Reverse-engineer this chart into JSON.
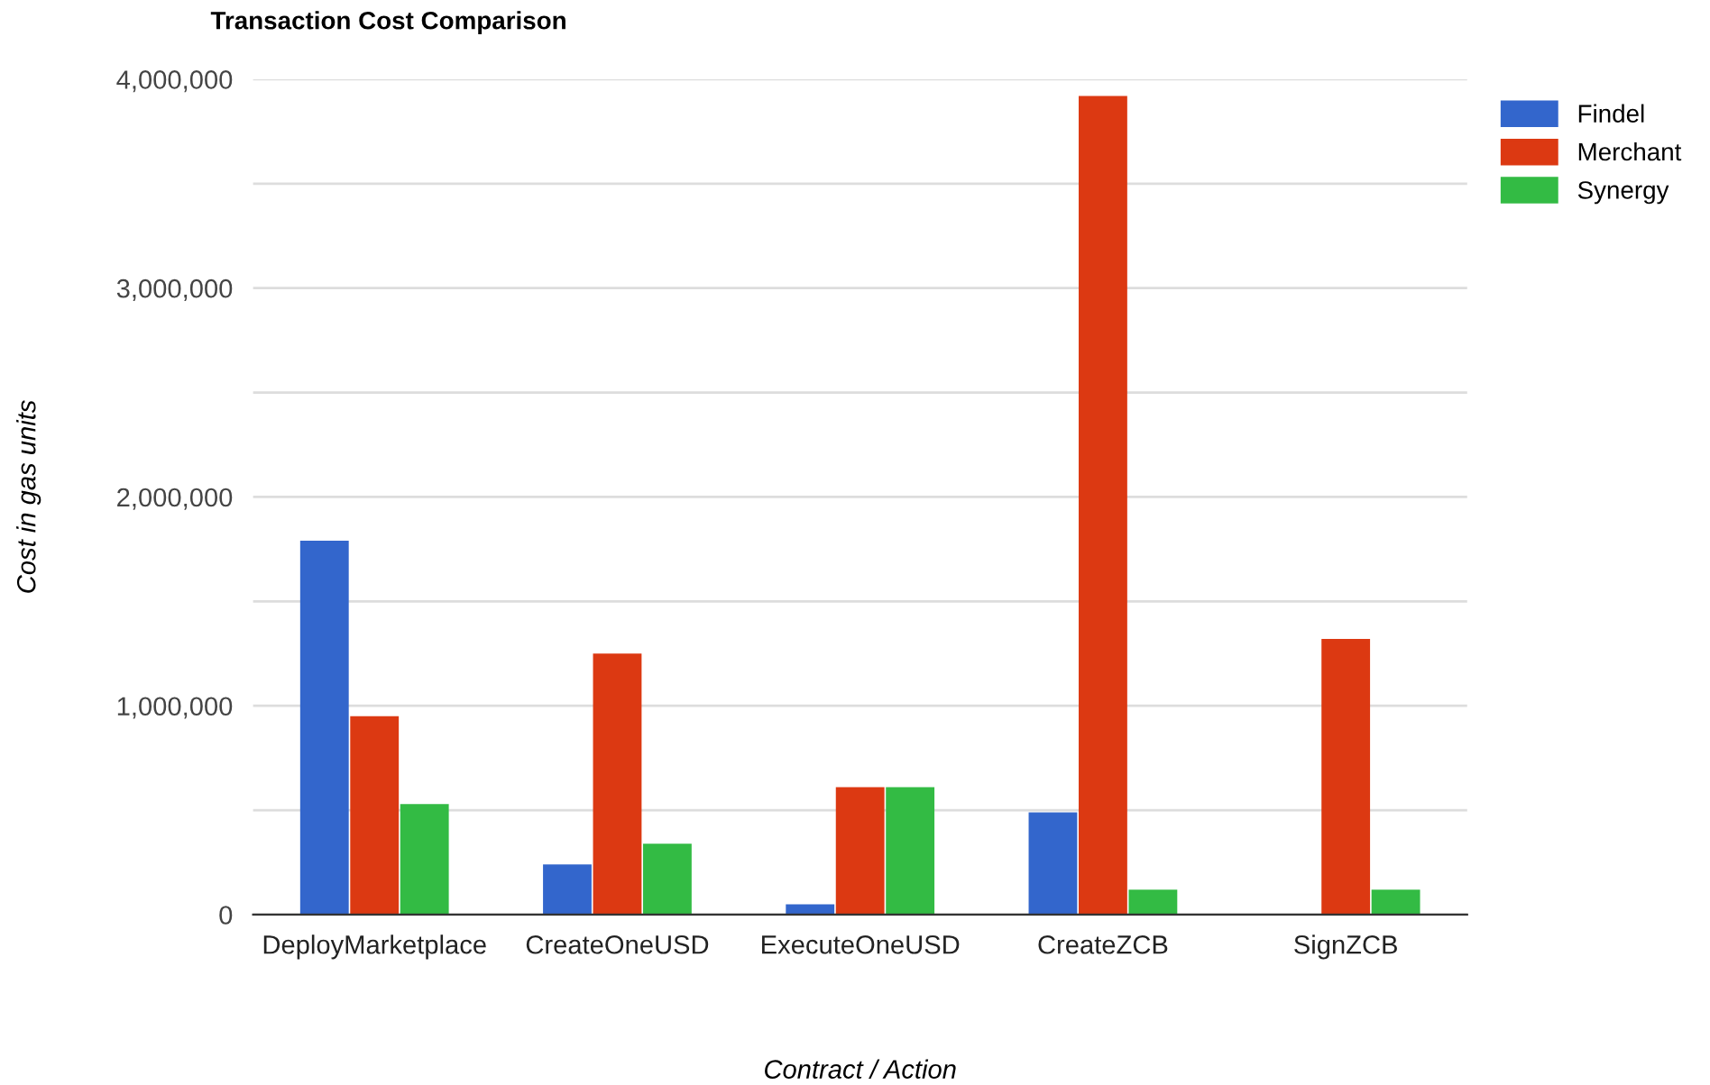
{
  "chart_data": {
    "type": "bar",
    "title": "Transaction Cost Comparison",
    "xlabel": "Contract / Action",
    "ylabel": "Cost in gas units",
    "categories": [
      "DeployMarketplace",
      "CreateOneUSD",
      "ExecuteOneUSD",
      "CreateZCB",
      "SignZCB"
    ],
    "series": [
      {
        "name": "Findel",
        "color": "#3366cc",
        "values": [
          1790000,
          240000,
          50000,
          490000,
          0
        ]
      },
      {
        "name": "Merchant",
        "color": "#dc3912",
        "values": [
          950000,
          1250000,
          610000,
          3920000,
          1320000
        ]
      },
      {
        "name": "Synergy",
        "color": "#33bb44",
        "values": [
          530000,
          340000,
          610000,
          120000,
          120000
        ]
      }
    ],
    "ylim": [
      0,
      4000000
    ],
    "yticks": [
      0,
      {
        "value": 500000,
        "label": null
      },
      {
        "value": 1000000,
        "label": "1,000,000"
      },
      {
        "value": 1500000,
        "label": null
      },
      {
        "value": 2000000,
        "label": "2,000,000"
      },
      {
        "value": 2500000,
        "label": null
      },
      {
        "value": 3000000,
        "label": "3,000,000"
      },
      {
        "value": 3500000,
        "label": null
      },
      {
        "value": 4000000,
        "label": "4,000,000"
      }
    ],
    "grid": "y",
    "legend": "top right"
  }
}
